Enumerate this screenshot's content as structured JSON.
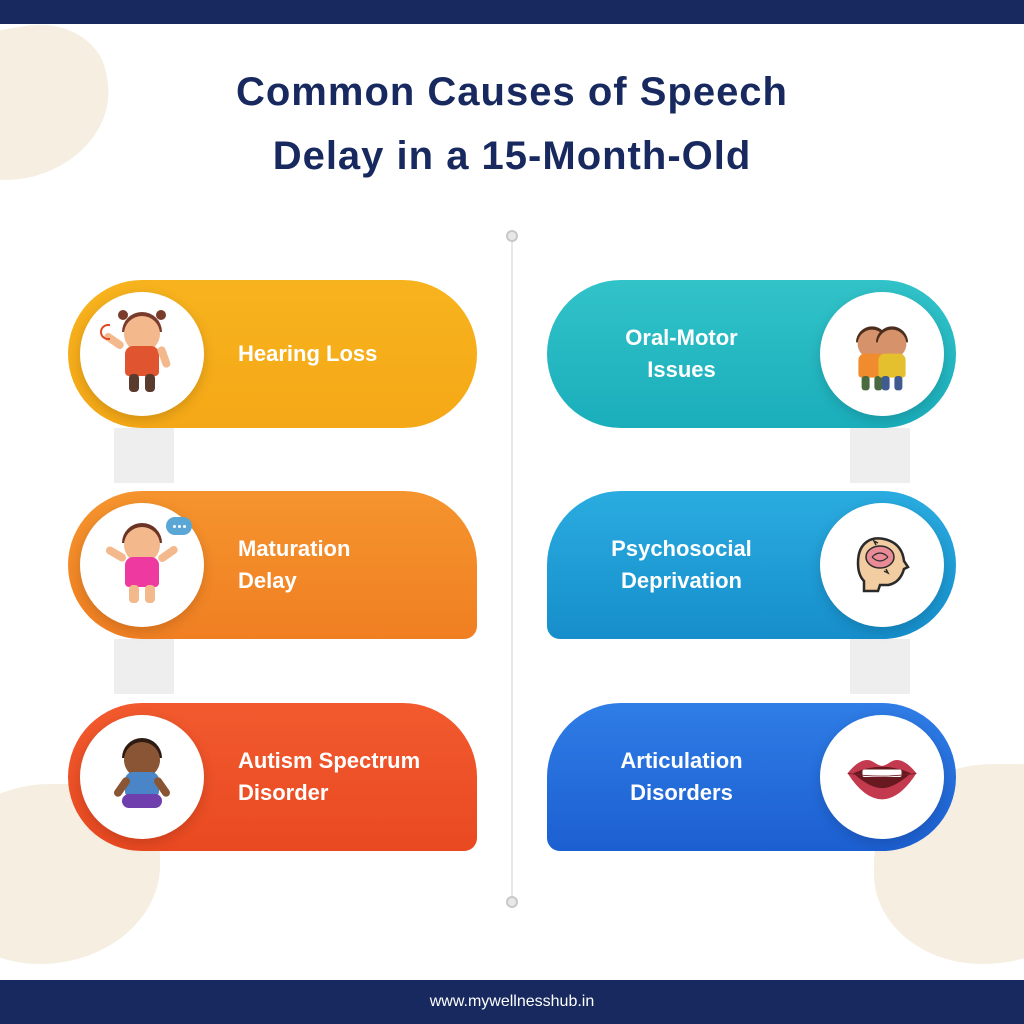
{
  "header": {
    "title_line1": "Common Causes of Speech",
    "title_line2": "Delay in a 15-Month-Old"
  },
  "footer": {
    "url": "www.mywellnesshub.in"
  },
  "styling": {
    "top_bar_color": "#17295e",
    "bottom_bar_color": "#17295e",
    "background_color": "#ffffff",
    "blob_color": "#f5eee1",
    "title_color": "#17295e",
    "title_fontsize": 40,
    "connector_color": "#eeeeee",
    "center_line_color": "#d0d0d0",
    "icon_circle_bg": "#ffffff",
    "label_text_color": "#ffffff",
    "label_fontsize": 22
  },
  "left_column": [
    {
      "label": "Hearing Loss",
      "bg_gradient": [
        "#f7b31e",
        "#f5a817"
      ],
      "icon": "child-hearing",
      "icon_colors": {
        "hair": "#7a3b2a",
        "skin": "#f3b98d",
        "shirt": "#e0552f",
        "accent": "#e24623"
      }
    },
    {
      "label": "Maturation\nDelay",
      "bg_gradient": [
        "#f5942e",
        "#f07f22"
      ],
      "icon": "child-speech-bubble",
      "icon_colors": {
        "hair": "#6b3324",
        "skin": "#f3b98d",
        "shirt": "#ee3aa0",
        "accent": "#5aa7d6"
      }
    },
    {
      "label": "Autism Spectrum\nDisorder",
      "bg_gradient": [
        "#f25a2e",
        "#e94921"
      ],
      "icon": "child-sitting",
      "icon_colors": {
        "hair": "#2d1b14",
        "skin": "#8a5534",
        "shirt": "#4a86c7",
        "accent": "#6f3fae"
      }
    }
  ],
  "right_column": [
    {
      "label": "Oral-Motor\nIssues",
      "bg_gradient": [
        "#32c3c9",
        "#1aaebb"
      ],
      "icon": "two-children",
      "icon_colors": {
        "hair": "#4a2d1d",
        "skin": "#d6926a",
        "shirt": "#e4c02e",
        "accent": "#f08b2e"
      }
    },
    {
      "label": "Psychosocial\nDeprivation",
      "bg_gradient": [
        "#2aace0",
        "#168ecb"
      ],
      "icon": "head-brain",
      "icon_colors": {
        "outline": "#2a2a2a",
        "skin": "#f2cda2",
        "brain": "#e98b96"
      }
    },
    {
      "label": "Articulation\nDisorders",
      "bg_gradient": [
        "#2f7de6",
        "#1c5fd1"
      ],
      "icon": "lips",
      "icon_colors": {
        "lips": "#c33a4e",
        "inner": "#68191f",
        "teeth": "#ffffff"
      }
    }
  ]
}
